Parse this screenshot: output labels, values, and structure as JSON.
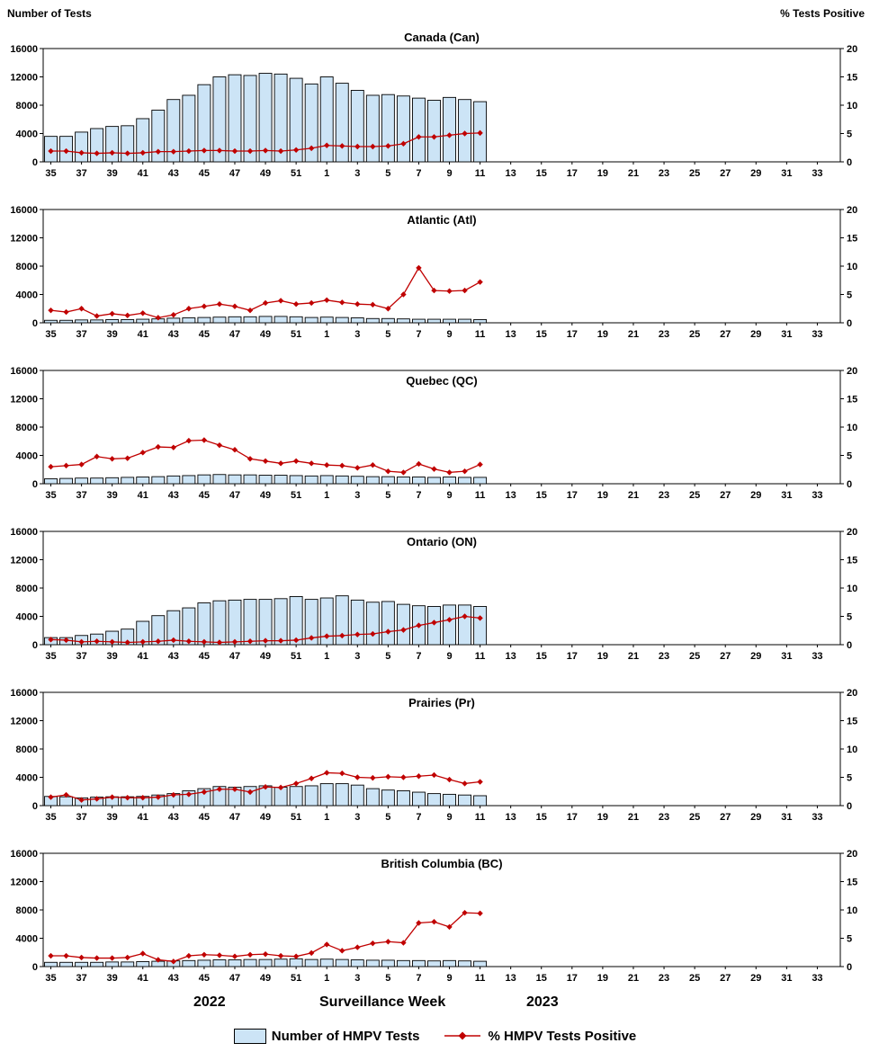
{
  "footer": {
    "year_left": "2022",
    "axis_title": "Surveillance Week",
    "year_right": "2023"
  },
  "legend": {
    "bars_label": "Number of HMPV Tests",
    "line_label": "% HMPV Tests Positive"
  },
  "colors": {
    "bar_fill": "#cce4f6",
    "bar_stroke": "#000000",
    "line": "#c00000"
  },
  "chart_data": {
    "type": "bar+line multipanel",
    "categories": [
      "35",
      "36",
      "37",
      "38",
      "39",
      "40",
      "41",
      "42",
      "43",
      "44",
      "45",
      "46",
      "47",
      "48",
      "49",
      "50",
      "51",
      "52",
      "1",
      "2",
      "3",
      "4",
      "5",
      "6",
      "7",
      "8",
      "9",
      "10",
      "11",
      "12",
      "13",
      "14",
      "15",
      "16",
      "17",
      "18",
      "19",
      "20",
      "21",
      "22",
      "23",
      "24",
      "25",
      "26",
      "27",
      "28",
      "29",
      "30",
      "31",
      "32",
      "33",
      "34"
    ],
    "x_axis": {
      "title": "Surveillance Week",
      "labels_every_other_week": true,
      "year_break_after": "52"
    },
    "left_axis": {
      "title": "Number of Tests",
      "min": 0,
      "max": 16000,
      "ticks": [
        0,
        4000,
        8000,
        12000,
        16000
      ]
    },
    "right_axis": {
      "title": "% Tests Positive",
      "min": 0,
      "max": 20,
      "ticks": [
        0,
        5,
        10,
        15,
        20
      ]
    },
    "panels": [
      {
        "title": "Canada (Can)",
        "tests": [
          3600,
          3600,
          4200,
          4700,
          5000,
          5100,
          6100,
          7300,
          8800,
          9400,
          10900,
          12000,
          12300,
          12200,
          12500,
          12400,
          11800,
          11000,
          12000,
          11100,
          10100,
          9400,
          9500,
          9300,
          9000,
          8700,
          9100,
          8800,
          8500
        ],
        "pct_positive": [
          1.9,
          1.9,
          1.6,
          1.5,
          1.6,
          1.5,
          1.6,
          1.8,
          1.8,
          1.9,
          2.0,
          2.0,
          1.9,
          1.9,
          2.0,
          1.9,
          2.1,
          2.4,
          2.9,
          2.8,
          2.7,
          2.7,
          2.8,
          3.2,
          4.4,
          4.4,
          4.7,
          5.0,
          5.1
        ]
      },
      {
        "title": "Atlantic (Atl)",
        "tests": [
          350,
          350,
          400,
          400,
          450,
          450,
          500,
          550,
          650,
          700,
          750,
          800,
          850,
          850,
          900,
          900,
          850,
          750,
          800,
          750,
          700,
          600,
          600,
          550,
          500,
          500,
          500,
          500,
          450
        ],
        "pct_positive": [
          2.2,
          1.9,
          2.5,
          1.2,
          1.6,
          1.3,
          1.7,
          0.9,
          1.4,
          2.5,
          2.9,
          3.3,
          2.9,
          2.2,
          3.5,
          3.9,
          3.3,
          3.5,
          4.0,
          3.6,
          3.3,
          3.2,
          2.5,
          5.0,
          9.7,
          5.7,
          5.6,
          5.7,
          7.2
        ]
      },
      {
        "title": "Quebec (QC)",
        "tests": [
          700,
          750,
          800,
          800,
          850,
          900,
          950,
          1000,
          1100,
          1150,
          1250,
          1300,
          1250,
          1250,
          1200,
          1200,
          1150,
          1100,
          1150,
          1100,
          1050,
          1000,
          1000,
          950,
          950,
          900,
          950,
          900,
          900
        ],
        "pct_positive": [
          3.0,
          3.2,
          3.4,
          4.8,
          4.4,
          4.5,
          5.5,
          6.5,
          6.4,
          7.6,
          7.7,
          6.8,
          6.0,
          4.4,
          4.0,
          3.6,
          4.0,
          3.6,
          3.3,
          3.2,
          2.8,
          3.3,
          2.2,
          2.0,
          3.5,
          2.6,
          2.0,
          2.2,
          3.4
        ]
      },
      {
        "title": "Ontario (ON)",
        "tests": [
          1000,
          1000,
          1300,
          1500,
          1900,
          2200,
          3300,
          4100,
          4800,
          5200,
          5900,
          6200,
          6300,
          6400,
          6400,
          6500,
          6800,
          6400,
          6600,
          6900,
          6300,
          6000,
          6100,
          5700,
          5500,
          5400,
          5600,
          5600,
          5400
        ],
        "pct_positive": [
          0.9,
          0.8,
          0.5,
          0.6,
          0.5,
          0.4,
          0.5,
          0.6,
          0.8,
          0.6,
          0.5,
          0.4,
          0.5,
          0.6,
          0.7,
          0.7,
          0.8,
          1.2,
          1.5,
          1.6,
          1.8,
          1.9,
          2.3,
          2.6,
          3.4,
          3.9,
          4.4,
          5.0,
          4.7
        ]
      },
      {
        "title": "Prairies (Pr)",
        "tests": [
          1300,
          1250,
          1100,
          1200,
          1250,
          1250,
          1300,
          1500,
          1700,
          2100,
          2400,
          2700,
          2600,
          2700,
          2800,
          2600,
          2700,
          2800,
          3100,
          3100,
          2900,
          2400,
          2200,
          2100,
          1900,
          1700,
          1600,
          1500,
          1400
        ],
        "pct_positive": [
          1.5,
          1.9,
          1.0,
          1.2,
          1.5,
          1.4,
          1.4,
          1.5,
          1.9,
          2.0,
          2.4,
          2.9,
          2.9,
          2.4,
          3.3,
          3.2,
          3.9,
          4.8,
          5.8,
          5.7,
          5.0,
          4.9,
          5.1,
          5.0,
          5.2,
          5.4,
          4.6,
          3.9,
          4.2
        ]
      },
      {
        "title": "British Columbia (BC)",
        "tests": [
          600,
          600,
          600,
          600,
          650,
          650,
          700,
          750,
          800,
          850,
          900,
          950,
          950,
          1000,
          1000,
          1050,
          1100,
          1000,
          1050,
          1000,
          950,
          900,
          900,
          850,
          850,
          800,
          850,
          800,
          750
        ],
        "pct_positive": [
          1.9,
          1.9,
          1.6,
          1.5,
          1.5,
          1.6,
          2.3,
          1.2,
          0.9,
          1.9,
          2.1,
          2.0,
          1.8,
          2.1,
          2.2,
          1.9,
          1.8,
          2.4,
          3.9,
          2.8,
          3.4,
          4.1,
          4.4,
          4.2,
          7.7,
          7.9,
          7.0,
          9.5,
          9.4
        ]
      }
    ]
  }
}
